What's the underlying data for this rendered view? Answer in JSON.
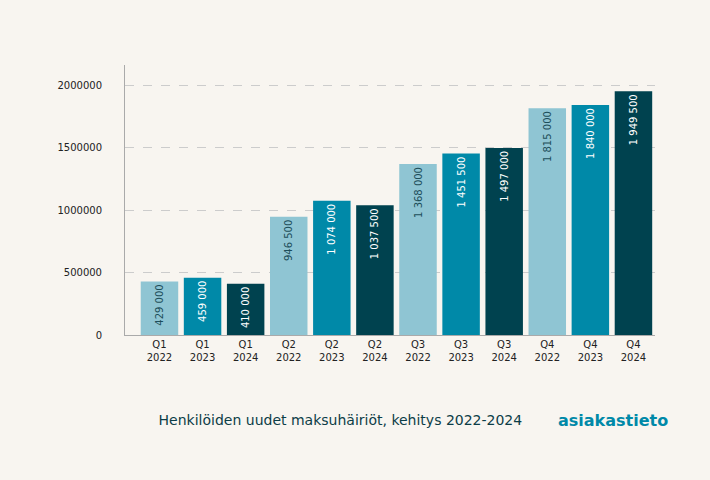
{
  "chart_data": {
    "type": "bar",
    "title": "Henkilöiden uudet maksuhäiriöt, kehitys 2022-2024",
    "categories": [
      "Q1 2022",
      "Q1 2023",
      "Q1 2024",
      "Q2 2022",
      "Q2 2023",
      "Q2 2024",
      "Q3 2022",
      "Q3 2023",
      "Q3 2024",
      "Q4 2022",
      "Q4 2023",
      "Q4 2024"
    ],
    "values": [
      429000,
      459000,
      410000,
      946500,
      1074000,
      1037500,
      1368000,
      1451500,
      1497000,
      1815000,
      1840000,
      1949500
    ],
    "value_labels": [
      "429 000",
      "459 000",
      "410 000",
      "946 500",
      "1 074 000",
      "1 037 500",
      "1 368 000",
      "1 451 500",
      "1 497 000",
      "1 815 000",
      "1 840 000",
      "1 949 500"
    ],
    "colors": [
      "#8fc5d3",
      "#0089a8",
      "#00424f",
      "#8fc5d3",
      "#0089a8",
      "#00424f",
      "#8fc5d3",
      "#0089a8",
      "#00424f",
      "#8fc5d3",
      "#0089a8",
      "#00424f"
    ],
    "ylim": [
      0,
      2160000
    ],
    "yticks": [
      0,
      500000,
      1000000,
      1500000,
      2000000
    ],
    "grid": true,
    "data_labels": true,
    "annotations": [
      "asiakastieto"
    ]
  }
}
